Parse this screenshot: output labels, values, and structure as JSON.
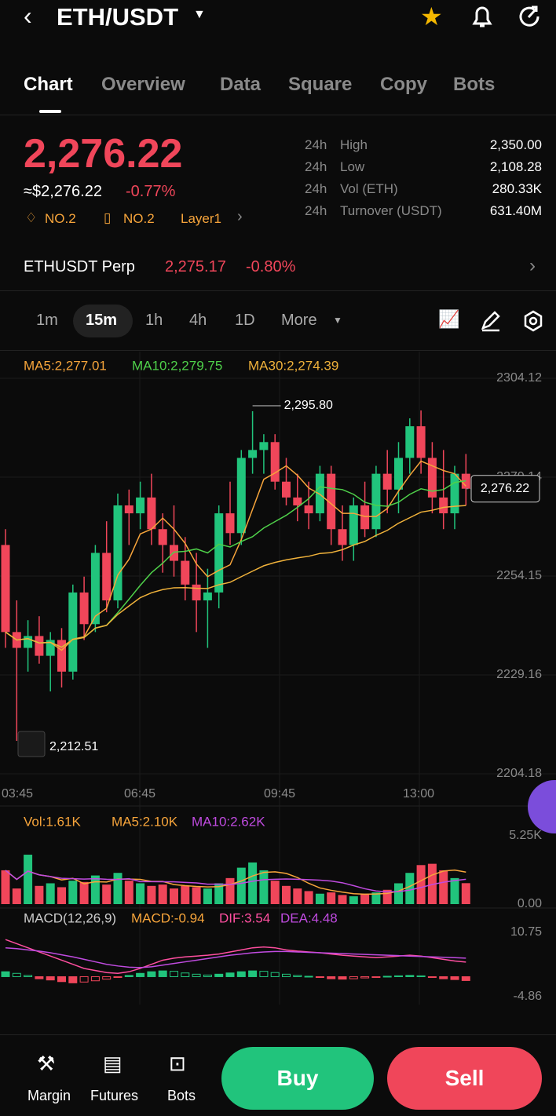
{
  "header": {
    "pair": "ETH/USDT"
  },
  "tabs": [
    "Chart",
    "Overview",
    "Data",
    "Square",
    "Copy",
    "Bots"
  ],
  "price": {
    "last": "2,276.22",
    "fiat": "≈$2,276.22",
    "change": "-0.77%",
    "rank1": "NO.2",
    "rank2": "NO.2",
    "tag": "Layer1"
  },
  "stats": [
    {
      "period": "24h",
      "label": "High",
      "value": "2,350.00"
    },
    {
      "period": "24h",
      "label": "Low",
      "value": "2,108.28"
    },
    {
      "period": "24h",
      "label": "Vol (ETH)",
      "value": "280.33K"
    },
    {
      "period": "24h",
      "label": "Turnover (USDT)",
      "value": "631.40M"
    }
  ],
  "perp": {
    "name": "ETHUSDT Perp",
    "price": "2,275.17",
    "change": "-0.80%"
  },
  "intervals": [
    "1m",
    "15m",
    "1h",
    "4h",
    "1D",
    "More"
  ],
  "chart": {
    "type": "candlestick",
    "ma_legend": [
      "MA5:2,277.01",
      "MA10:2,279.75",
      "MA30:2,274.39"
    ],
    "ylim": [
      2204.18,
      2304.12
    ],
    "yticks": [
      2304.12,
      2279.14,
      2254.15,
      2229.16,
      2204.18
    ],
    "xlabels": [
      "03:45",
      "06:45",
      "09:45",
      "13:00"
    ],
    "high_label": "2,295.80",
    "low_label": "2,212.51",
    "last_label": "2,276.22",
    "candles": [
      [
        2262,
        2266,
        2236,
        2240
      ],
      [
        2240,
        2248,
        2212.51,
        2236
      ],
      [
        2236,
        2243,
        2230,
        2239
      ],
      [
        2239,
        2244,
        2232,
        2234
      ],
      [
        2234,
        2240,
        2225,
        2238
      ],
      [
        2238,
        2241,
        2226,
        2230
      ],
      [
        2230,
        2252,
        2228,
        2250
      ],
      [
        2250,
        2254,
        2238,
        2242
      ],
      [
        2242,
        2262,
        2240,
        2260
      ],
      [
        2260,
        2268,
        2245,
        2248
      ],
      [
        2248,
        2275,
        2246,
        2272
      ],
      [
        2272,
        2276,
        2262,
        2270
      ],
      [
        2270,
        2278,
        2266,
        2274
      ],
      [
        2274,
        2280,
        2262,
        2266
      ],
      [
        2266,
        2270,
        2255,
        2262
      ],
      [
        2262,
        2272,
        2254,
        2258
      ],
      [
        2258,
        2264,
        2248,
        2252
      ],
      [
        2252,
        2260,
        2240,
        2248
      ],
      [
        2248,
        2256,
        2236,
        2250
      ],
      [
        2250,
        2272,
        2246,
        2270
      ],
      [
        2270,
        2278,
        2262,
        2265
      ],
      [
        2265,
        2286,
        2262,
        2284
      ],
      [
        2284,
        2295.8,
        2280,
        2286
      ],
      [
        2286,
        2290,
        2280,
        2288
      ],
      [
        2288,
        2290,
        2276,
        2278
      ],
      [
        2278,
        2284,
        2272,
        2274
      ],
      [
        2274,
        2280,
        2268,
        2272
      ],
      [
        2272,
        2278,
        2266,
        2270
      ],
      [
        2270,
        2282,
        2268,
        2280
      ],
      [
        2280,
        2282,
        2262,
        2266
      ],
      [
        2266,
        2272,
        2258,
        2262
      ],
      [
        2262,
        2274,
        2258,
        2272
      ],
      [
        2272,
        2278,
        2264,
        2266
      ],
      [
        2266,
        2282,
        2264,
        2280
      ],
      [
        2280,
        2286,
        2270,
        2276
      ],
      [
        2276,
        2288,
        2270,
        2284
      ],
      [
        2284,
        2294,
        2280,
        2292
      ],
      [
        2292,
        2296,
        2280,
        2284
      ],
      [
        2284,
        2288,
        2270,
        2274
      ],
      [
        2274,
        2286,
        2266,
        2270
      ],
      [
        2270,
        2282,
        2266,
        2280
      ],
      [
        2280,
        2285,
        2272,
        2276.22
      ]
    ]
  },
  "volume": {
    "legend": [
      "Vol:1.61K",
      "MA5:2.10K",
      "MA10:2.62K"
    ],
    "ylim": [
      0,
      5.25
    ],
    "yticks": [
      {
        "value": 5.25,
        "label": "5.25K"
      },
      {
        "value": 0,
        "label": "0.00"
      }
    ],
    "values": [
      2.6,
      1.2,
      3.8,
      1.4,
      1.6,
      1.3,
      1.8,
      1.7,
      2.2,
      1.5,
      2.4,
      1.8,
      1.6,
      1.4,
      1.5,
      1.2,
      1.4,
      1.3,
      1.2,
      1.6,
      2.0,
      2.8,
      3.2,
      2.6,
      1.8,
      1.4,
      1.2,
      1.0,
      0.8,
      0.9,
      0.7,
      0.6,
      0.8,
      0.9,
      1.1,
      1.6,
      2.4,
      3.0,
      3.1,
      2.6,
      2.0,
      1.61
    ]
  },
  "macd": {
    "legend": [
      "MACD(12,26,9)",
      "MACD:-0.94",
      "DIF:3.54",
      "DEA:4.48"
    ],
    "ylim": [
      -4.86,
      10.75
    ],
    "yticks": [
      10.75,
      -4.86
    ],
    "hist": [
      1.2,
      0.8,
      0.3,
      -0.5,
      -0.8,
      -1.2,
      -1.5,
      -1.3,
      -1,
      -0.6,
      -0.2,
      0.3,
      0.8,
      1.2,
      1.4,
      1.3,
      0.9,
      0.6,
      0.4,
      0.6,
      0.9,
      1.2,
      1.4,
      1.3,
      1.0,
      0.6,
      0.3,
      0.1,
      -0.2,
      -0.5,
      -0.6,
      -0.5,
      -0.3,
      -0.2,
      0.1,
      0.2,
      0.3,
      0.2,
      -0.2,
      -0.5,
      -0.7,
      -0.94
    ],
    "dif": [
      9,
      8,
      7,
      6,
      5,
      4,
      3,
      2,
      1.5,
      1,
      0.8,
      1.2,
      2,
      3,
      4,
      4.5,
      4.8,
      5,
      5.2,
      5.5,
      6,
      6.5,
      7,
      7.2,
      7,
      6.5,
      6.2,
      6,
      5.8,
      5.5,
      5.2,
      5,
      4.8,
      4.6,
      4.8,
      5,
      5.2,
      5,
      4.6,
      4.2,
      3.8,
      3.54
    ],
    "dea": [
      7,
      6.8,
      6.5,
      6.2,
      5.8,
      5.3,
      4.8,
      4.2,
      3.6,
      3,
      2.6,
      2.3,
      2.2,
      2.4,
      2.8,
      3.2,
      3.6,
      4,
      4.4,
      4.8,
      5.2,
      5.5,
      5.8,
      6,
      6.1,
      6.1,
      6,
      5.9,
      5.8,
      5.7,
      5.6,
      5.5,
      5.4,
      5.3,
      5.2,
      5.1,
      5,
      4.9,
      4.8,
      4.7,
      4.6,
      4.48
    ]
  },
  "nav": [
    "Margin",
    "Futures",
    "Bots"
  ],
  "actions": [
    "Buy",
    "Sell"
  ]
}
